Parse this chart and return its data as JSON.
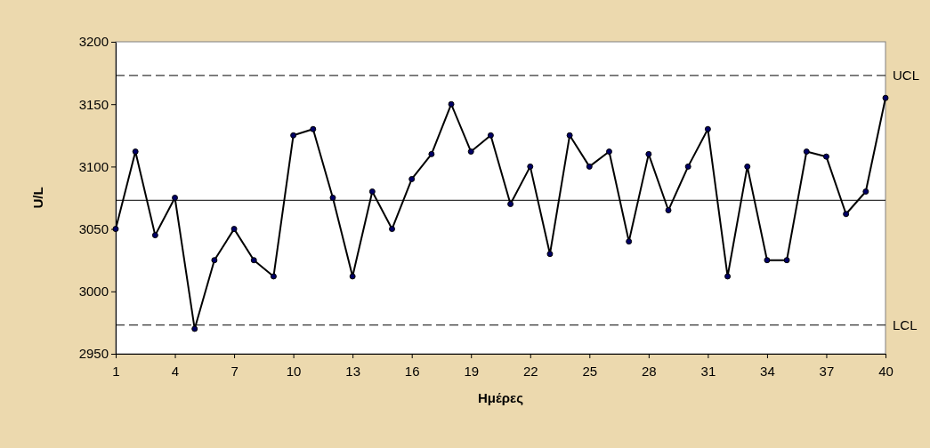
{
  "chart_data": {
    "type": "line",
    "xlabel": "Ημέρες",
    "ylabel": "U/L",
    "x": [
      1,
      2,
      3,
      4,
      5,
      6,
      7,
      8,
      9,
      10,
      11,
      12,
      13,
      14,
      15,
      16,
      17,
      18,
      19,
      20,
      21,
      22,
      23,
      24,
      25,
      26,
      27,
      28,
      29,
      30,
      31,
      32,
      33,
      34,
      35,
      36,
      37,
      38,
      39,
      40
    ],
    "series": [
      {
        "color": "#000000",
        "values": [
          3050,
          3112,
          3045,
          3075,
          2970,
          3025,
          3050,
          3025,
          3012,
          3125,
          3130,
          3075,
          3012,
          3080,
          3050,
          3090,
          3110,
          3150,
          3112,
          3125,
          3070,
          3100,
          3030,
          3125,
          3100,
          3112,
          3040,
          3110,
          3065,
          3100,
          3130,
          3012,
          3100,
          3025,
          3025,
          3112,
          3108,
          3062,
          3080,
          3155
        ]
      }
    ],
    "marker": "circle",
    "line_style": "solid",
    "grid": false,
    "xlim": [
      1,
      40
    ],
    "xticks": [
      1,
      4,
      7,
      10,
      13,
      16,
      19,
      22,
      25,
      28,
      31,
      34,
      37,
      40
    ],
    "ylim": [
      2950,
      3200
    ],
    "yticks": [
      2950,
      3000,
      3050,
      3100,
      3150,
      3200
    ],
    "ref_lines": [
      {
        "axis": "y",
        "value": 3073,
        "label": null,
        "line_style": "solid",
        "color": "#000000"
      },
      {
        "axis": "y",
        "value": 3173,
        "label": "UCL",
        "line_style": "dashed",
        "color": "#000000"
      },
      {
        "axis": "y",
        "value": 2973,
        "label": "LCL",
        "line_style": "dashed",
        "color": "#000000"
      }
    ]
  }
}
